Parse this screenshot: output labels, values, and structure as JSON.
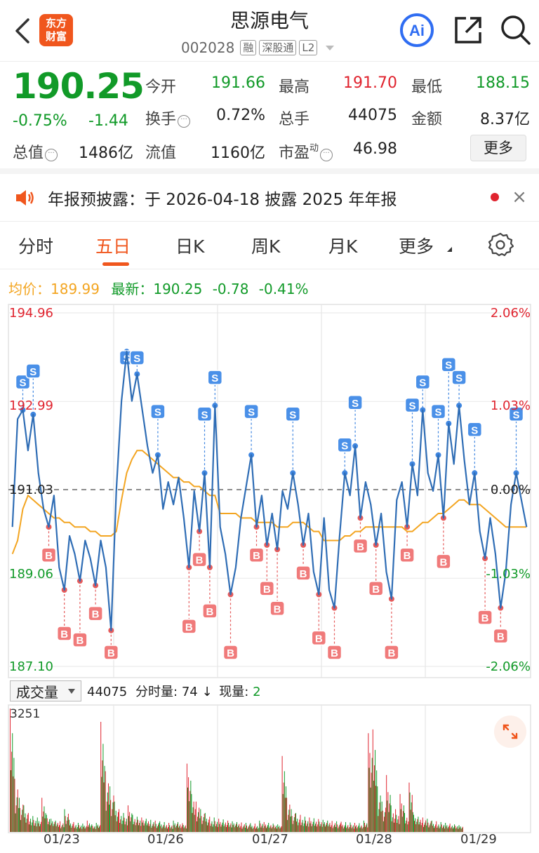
{
  "header": {
    "title": "思源电气",
    "logo_line1": "东方",
    "logo_line2": "财富",
    "code": "002028",
    "tags": [
      "融",
      "深股通",
      "L2"
    ],
    "ai_label": "Ai"
  },
  "quote": {
    "price": "190.25",
    "change_pct": "-0.75%",
    "change": "-1.44",
    "fields": {
      "open_label": "今开",
      "open": "191.66",
      "high_label": "最高",
      "high": "191.70",
      "low_label": "最低",
      "low": "188.15",
      "turnover_label": "换手",
      "turnover": "0.72%",
      "volume_label": "总手",
      "volume": "44075",
      "amount_label": "金额",
      "amount": "8.37亿",
      "mktcap_label": "总值",
      "mktcap": "1486亿",
      "float_label": "流值",
      "float": "1160亿",
      "pe_label": "市盈",
      "pe_sup": "动",
      "pe": "46.98"
    },
    "more_label": "更多"
  },
  "notice": {
    "text": "年报预披露：于 2026-04-18 披露 2025 年年报",
    "close_icon": "×"
  },
  "tabs": [
    "分时",
    "五日",
    "日K",
    "周K",
    "月K",
    "更多"
  ],
  "active_tab": "五日",
  "legend": {
    "avg_label": "均价：",
    "avg": "189.99",
    "latest_label": "最新：",
    "latest": "190.25",
    "chg": "-0.78",
    "chg_pct": "-0.41%"
  },
  "chart_data": {
    "type": "line",
    "y_ticks_left": [
      "194.96",
      "192.99",
      "191.03",
      "189.06",
      "187.10"
    ],
    "y_ticks_right": [
      "2.06%",
      "1.03%",
      "0.00%",
      "-1.03%",
      "-2.06%"
    ],
    "ylim": [
      187.1,
      194.96
    ],
    "prev_close": 191.03,
    "days": [
      "01/23",
      "01/26",
      "01/27",
      "01/28",
      "01/29"
    ],
    "markers": {
      "buy": "B",
      "sell": "S"
    },
    "series": [
      {
        "values": [
          190.2,
          192.6,
          192.8,
          191.9,
          192.7,
          191.4,
          190.6,
          190.2,
          190.9,
          189.3,
          188.8,
          190.0,
          189.6,
          189.0,
          189.9,
          189.5,
          188.9,
          189.9,
          189.3,
          187.9,
          191.0,
          193.0,
          194.1,
          193.0,
          193.6,
          192.8,
          192.0,
          191.4,
          191.8,
          190.6,
          191.2,
          190.7,
          191.3,
          190.4,
          189.3,
          191.0,
          190.1,
          191.4,
          189.3,
          192.9,
          190.2,
          189.6,
          188.7,
          189.3,
          190.4,
          191.1,
          191.8,
          190.2,
          190.9,
          189.8,
          190.5,
          189.7,
          191.0,
          190.6,
          191.4,
          190.7,
          189.8,
          190.5,
          189.2,
          188.7,
          190.4,
          188.8,
          188.4,
          190.0,
          191.4,
          190.9,
          192.0,
          190.4,
          191.2,
          190.7,
          189.8,
          190.5,
          189.2,
          188.6,
          190.8,
          191.2,
          190.2,
          191.6,
          190.9,
          192.8,
          191.4,
          191.0,
          191.8,
          190.4,
          192.5,
          191.6,
          192.9,
          191.7,
          190.7,
          191.4,
          190.1,
          189.5,
          190.4,
          189.6,
          188.4,
          189.2,
          190.7,
          191.4,
          190.8,
          190.2
        ]
      },
      {
        "values": [
          189.6,
          189.9,
          190.6,
          190.9,
          190.8,
          190.7,
          190.6,
          190.5,
          190.4,
          190.4,
          190.3,
          190.3,
          190.2,
          190.2,
          190.2,
          190.1,
          190.1,
          190.0,
          190.0,
          190.0,
          190.1,
          190.8,
          191.4,
          191.7,
          191.9,
          191.9,
          191.8,
          191.7,
          191.6,
          191.5,
          191.4,
          191.3,
          191.3,
          191.2,
          191.2,
          191.1,
          191.1,
          191.0,
          190.9,
          190.9,
          190.5,
          190.5,
          190.5,
          190.5,
          190.4,
          190.4,
          190.4,
          190.3,
          190.3,
          190.3,
          190.3,
          190.2,
          190.2,
          190.2,
          190.3,
          190.3,
          190.3,
          190.2,
          190.1,
          190.1,
          189.9,
          189.9,
          189.9,
          189.9,
          190.0,
          190.0,
          190.1,
          190.1,
          190.2,
          190.2,
          190.2,
          190.2,
          190.2,
          190.2,
          190.2,
          190.2,
          190.1,
          190.1,
          190.2,
          190.3,
          190.3,
          190.4,
          190.5,
          190.5,
          190.6,
          190.7,
          190.8,
          190.8,
          190.7,
          190.7,
          190.7,
          190.6,
          190.5,
          190.4,
          190.3,
          190.2,
          190.2,
          190.2,
          190.2,
          190.2
        ]
      }
    ]
  },
  "volume": {
    "selector_label": "成交量",
    "total": "44075",
    "minute_label": "分时量:",
    "minute": "74",
    "now_label": "现量:",
    "now": "2",
    "max_label": "3251",
    "values": [
      3251,
      1400,
      900,
      700,
      500,
      420,
      380,
      900,
      450,
      350,
      300,
      280,
      600,
      320,
      260,
      240,
      220,
      300,
      200,
      240,
      2900,
      1600,
      1200,
      800,
      600,
      500,
      700,
      450,
      400,
      380,
      350,
      320,
      300,
      280,
      260,
      240,
      300,
      260,
      230,
      1800,
      1000,
      800,
      600,
      500,
      400,
      380,
      350,
      330,
      300,
      280,
      260,
      250,
      240,
      230,
      220,
      300,
      260,
      240,
      220,
      200,
      2000,
      900,
      600,
      500,
      450,
      400,
      380,
      360,
      340,
      320,
      300,
      290,
      280,
      270,
      260,
      250,
      240,
      230,
      300,
      2600,
      2700,
      1200,
      800,
      1500,
      700,
      600,
      1000,
      500,
      1300,
      450,
      400,
      380,
      350,
      300,
      280,
      260,
      240,
      220,
      200,
      180
    ],
    "colors": [
      "r",
      "r",
      "g",
      "g",
      "r",
      "g",
      "g",
      "r",
      "g",
      "g",
      "g",
      "r",
      "g",
      "g",
      "r",
      "g",
      "g",
      "r",
      "g",
      "g",
      "r",
      "r",
      "g",
      "g",
      "r",
      "g",
      "r",
      "g",
      "g",
      "r",
      "g",
      "g",
      "r",
      "g",
      "g",
      "r",
      "g",
      "g",
      "r",
      "r",
      "g",
      "r",
      "g",
      "g",
      "r",
      "g",
      "r",
      "g",
      "r",
      "g",
      "g",
      "r",
      "g",
      "g",
      "r",
      "g",
      "r",
      "g",
      "g",
      "g",
      "r",
      "r",
      "g",
      "g",
      "r",
      "g",
      "r",
      "g",
      "r",
      "g",
      "g",
      "r",
      "g",
      "r",
      "g",
      "g",
      "r",
      "g",
      "g",
      "r",
      "r",
      "g",
      "g",
      "r",
      "g",
      "r",
      "r",
      "g",
      "r",
      "g",
      "g",
      "r",
      "g",
      "g",
      "r",
      "g",
      "g",
      "r",
      "g",
      "g"
    ]
  }
}
